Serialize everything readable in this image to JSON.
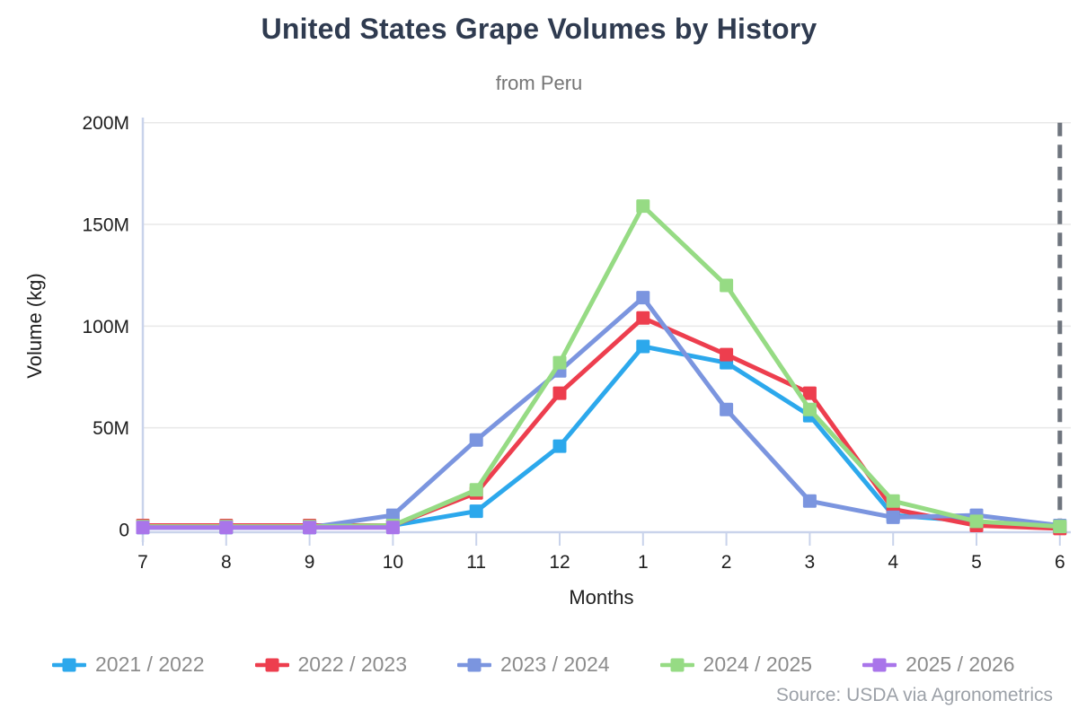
{
  "header": {
    "title": "United States Grape Volumes by History",
    "subtitle": "from Peru"
  },
  "source": "Source: USDA via Agronometrics",
  "colors": {
    "title_text": "#2F3B50",
    "subtitle_text": "#757575",
    "axis_text": "#1E1E1E",
    "legend_text": "#8C8C8C",
    "source_text": "#9CA1A8",
    "gridline": "#E8E8E8",
    "axis_line": "#C9D3EB",
    "dashed_marker_line": "#6E747D"
  },
  "chart_data": {
    "type": "line",
    "title": "United States Grape Volumes by History",
    "subtitle": "from Peru",
    "xlabel": "Months",
    "ylabel": "Volume (kg)",
    "x_categories": [
      "7",
      "8",
      "9",
      "10",
      "11",
      "12",
      "1",
      "2",
      "3",
      "4",
      "5",
      "6"
    ],
    "y_unit": "million kg",
    "ylim_millions": [
      0,
      200
    ],
    "y_ticks_millions": [
      0,
      50,
      100,
      150,
      200
    ],
    "y_tick_labels": [
      "0",
      "50M",
      "100M",
      "150M",
      "200M"
    ],
    "grid": "horizontal",
    "legend_position": "bottom",
    "dashed_vline_at_category": "6",
    "marker_shape": "square",
    "series": [
      {
        "name": "2021 / 2022",
        "color": "#2CA8EC",
        "values_millions": [
          1,
          1,
          1,
          2,
          9,
          41,
          90,
          82,
          56,
          7,
          4,
          1
        ]
      },
      {
        "name": "2022 / 2023",
        "color": "#ED3E4E",
        "values_millions": [
          2,
          2,
          2,
          2,
          18,
          67,
          104,
          86,
          67,
          10,
          2,
          0.5
        ]
      },
      {
        "name": "2023 / 2024",
        "color": "#7B95DF",
        "values_millions": [
          1,
          1,
          1,
          7,
          44,
          78,
          114,
          59,
          14,
          6,
          7,
          2
        ]
      },
      {
        "name": "2024 / 2025",
        "color": "#96DB84",
        "values_millions": [
          1.5,
          1.5,
          1.5,
          2,
          19.5,
          82,
          159,
          120,
          59,
          14,
          4,
          1.5
        ]
      },
      {
        "name": "2025 / 2026",
        "color": "#A975EA",
        "values_millions": [
          1,
          1,
          1,
          1,
          null,
          null,
          null,
          null,
          null,
          null,
          null,
          null
        ]
      }
    ]
  }
}
